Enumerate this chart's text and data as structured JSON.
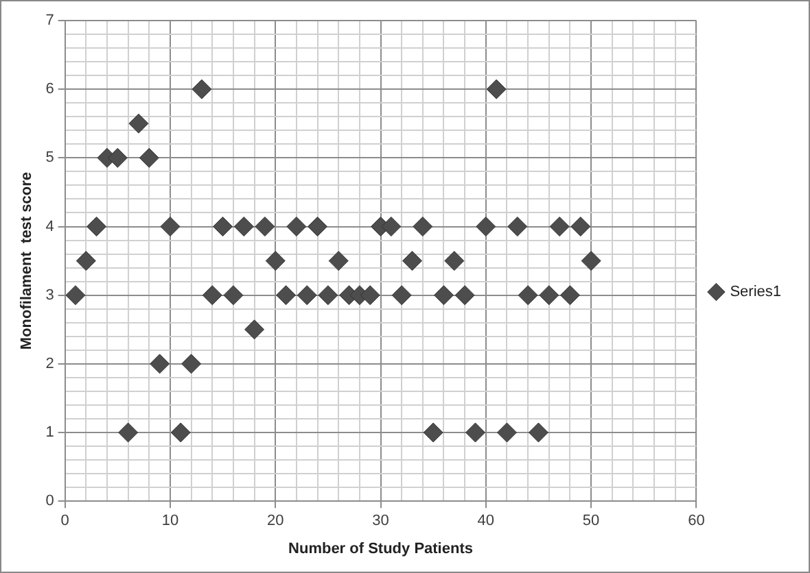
{
  "chart_data": {
    "type": "scatter",
    "xlabel": "Number of Study Patients",
    "ylabel": "Monofilament  test score",
    "x": [
      1,
      2,
      3,
      4,
      5,
      6,
      7,
      8,
      9,
      10,
      11,
      12,
      13,
      14,
      15,
      16,
      17,
      18,
      19,
      20,
      21,
      22,
      23,
      24,
      25,
      26,
      27,
      28,
      29,
      30,
      31,
      32,
      33,
      34,
      35,
      36,
      37,
      38,
      39,
      40,
      41,
      42,
      43,
      44,
      45,
      46,
      47,
      48,
      49,
      50
    ],
    "series": [
      {
        "name": "Series1",
        "color": "#4d4d4d",
        "values": [
          3,
          3.5,
          4,
          5,
          5,
          1,
          5.5,
          5,
          2,
          4,
          1,
          2,
          6,
          3,
          4,
          3,
          4,
          2.5,
          4,
          3.5,
          3,
          4,
          3,
          4,
          3,
          3.5,
          3,
          3,
          3,
          4,
          4,
          3,
          3.5,
          4,
          1,
          3,
          3.5,
          3,
          1,
          4,
          6,
          1,
          4,
          3,
          1,
          3,
          4,
          3,
          4,
          3.5
        ]
      }
    ],
    "xlim": [
      0,
      60
    ],
    "xticks": [
      0,
      {
        "value": 2,
        "label": null
      },
      {
        "value": 4,
        "label": null
      },
      {
        "value": 6,
        "label": null
      },
      {
        "value": 8,
        "label": null
      },
      10,
      {
        "value": 12,
        "label": null
      },
      {
        "value": 14,
        "label": null
      },
      {
        "value": 16,
        "label": null
      },
      {
        "value": 18,
        "label": null
      },
      20,
      {
        "value": 22,
        "label": null
      },
      {
        "value": 24,
        "label": null
      },
      {
        "value": 26,
        "label": null
      },
      {
        "value": 28,
        "label": null
      },
      30,
      {
        "value": 32,
        "label": null
      },
      {
        "value": 34,
        "label": null
      },
      {
        "value": 36,
        "label": null
      },
      {
        "value": 38,
        "label": null
      },
      40,
      {
        "value": 42,
        "label": null
      },
      {
        "value": 44,
        "label": null
      },
      {
        "value": 46,
        "label": null
      },
      {
        "value": 48,
        "label": null
      },
      50,
      {
        "value": 52,
        "label": null
      },
      {
        "value": 54,
        "label": null
      },
      {
        "value": 56,
        "label": null
      },
      {
        "value": 58,
        "label": null
      },
      60
    ],
    "ylim": [
      0,
      7
    ],
    "yticks": [
      0,
      {
        "value": 0.2,
        "label": null
      },
      {
        "value": 0.4,
        "label": null
      },
      {
        "value": 0.6,
        "label": null
      },
      {
        "value": 0.8,
        "label": null
      },
      1,
      {
        "value": 1.2,
        "label": null
      },
      {
        "value": 1.4,
        "label": null
      },
      {
        "value": 1.6,
        "label": null
      },
      {
        "value": 1.8,
        "label": null
      },
      2,
      {
        "value": 2.2,
        "label": null
      },
      {
        "value": 2.4,
        "label": null
      },
      {
        "value": 2.6,
        "label": null
      },
      {
        "value": 2.8,
        "label": null
      },
      3,
      {
        "value": 3.2,
        "label": null
      },
      {
        "value": 3.4,
        "label": null
      },
      {
        "value": 3.6,
        "label": null
      },
      {
        "value": 3.8,
        "label": null
      },
      4,
      {
        "value": 4.2,
        "label": null
      },
      {
        "value": 4.4,
        "label": null
      },
      {
        "value": 4.6,
        "label": null
      },
      {
        "value": 4.8,
        "label": null
      },
      5,
      {
        "value": 5.2,
        "label": null
      },
      {
        "value": 5.4,
        "label": null
      },
      {
        "value": 5.6,
        "label": null
      },
      {
        "value": 5.8,
        "label": null
      },
      6,
      {
        "value": 6.2,
        "label": null
      },
      {
        "value": 6.4,
        "label": null
      },
      {
        "value": 6.6,
        "label": null
      },
      {
        "value": 6.8,
        "label": null
      },
      7
    ],
    "grid": true,
    "legend": "right",
    "marker": "diamond"
  }
}
